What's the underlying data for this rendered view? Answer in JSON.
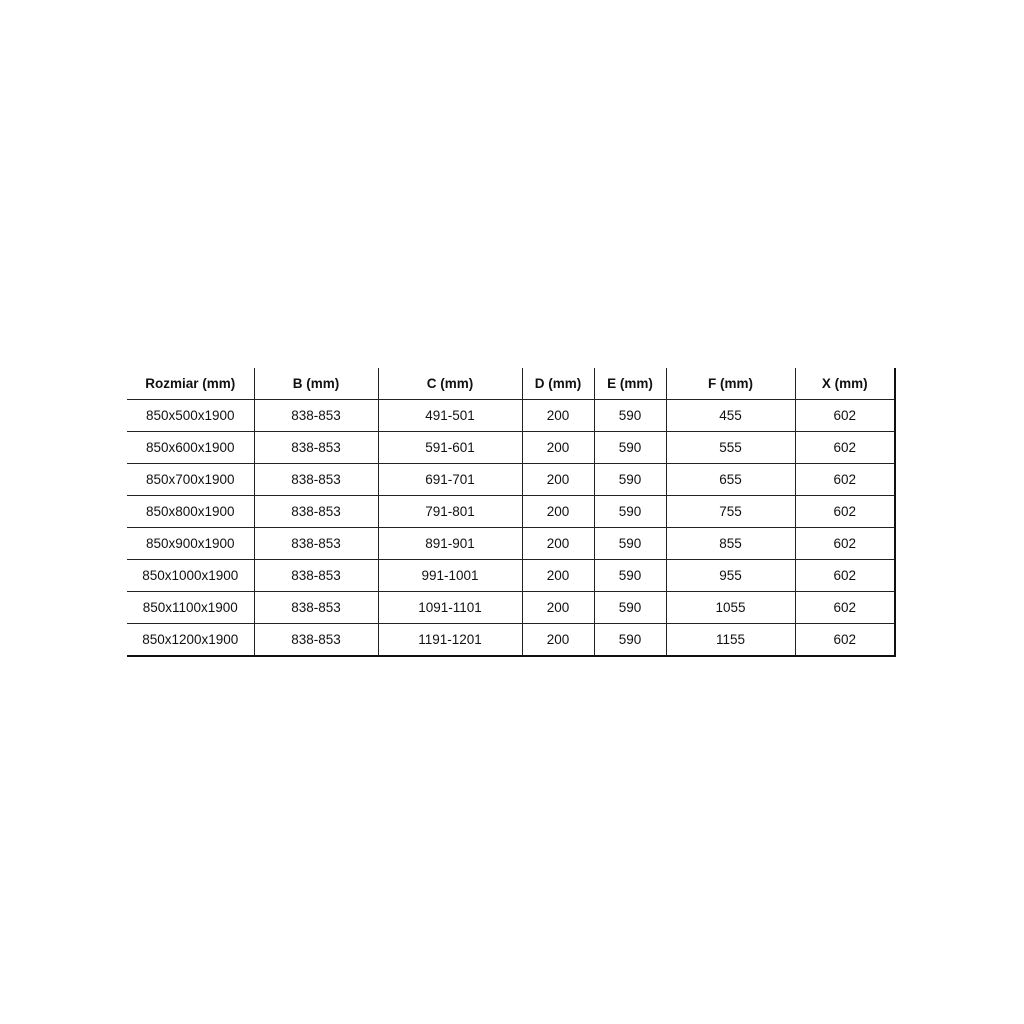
{
  "table": {
    "headers": [
      "Rozmiar (mm)",
      "B (mm)",
      "C (mm)",
      "D (mm)",
      "E (mm)",
      "F (mm)",
      "X (mm)"
    ],
    "rows": [
      [
        "850x500x1900",
        "838-853",
        "491-501",
        "200",
        "590",
        "455",
        "602"
      ],
      [
        "850x600x1900",
        "838-853",
        "591-601",
        "200",
        "590",
        "555",
        "602"
      ],
      [
        "850x700x1900",
        "838-853",
        "691-701",
        "200",
        "590",
        "655",
        "602"
      ],
      [
        "850x800x1900",
        "838-853",
        "791-801",
        "200",
        "590",
        "755",
        "602"
      ],
      [
        "850x900x1900",
        "838-853",
        "891-901",
        "200",
        "590",
        "855",
        "602"
      ],
      [
        "850x1000x1900",
        "838-853",
        "991-1001",
        "200",
        "590",
        "955",
        "602"
      ],
      [
        "850x1100x1900",
        "838-853",
        "1091-1101",
        "200",
        "590",
        "1055",
        "602"
      ],
      [
        "850x1200x1900",
        "838-853",
        "1191-1201",
        "200",
        "590",
        "1155",
        "602"
      ]
    ]
  }
}
